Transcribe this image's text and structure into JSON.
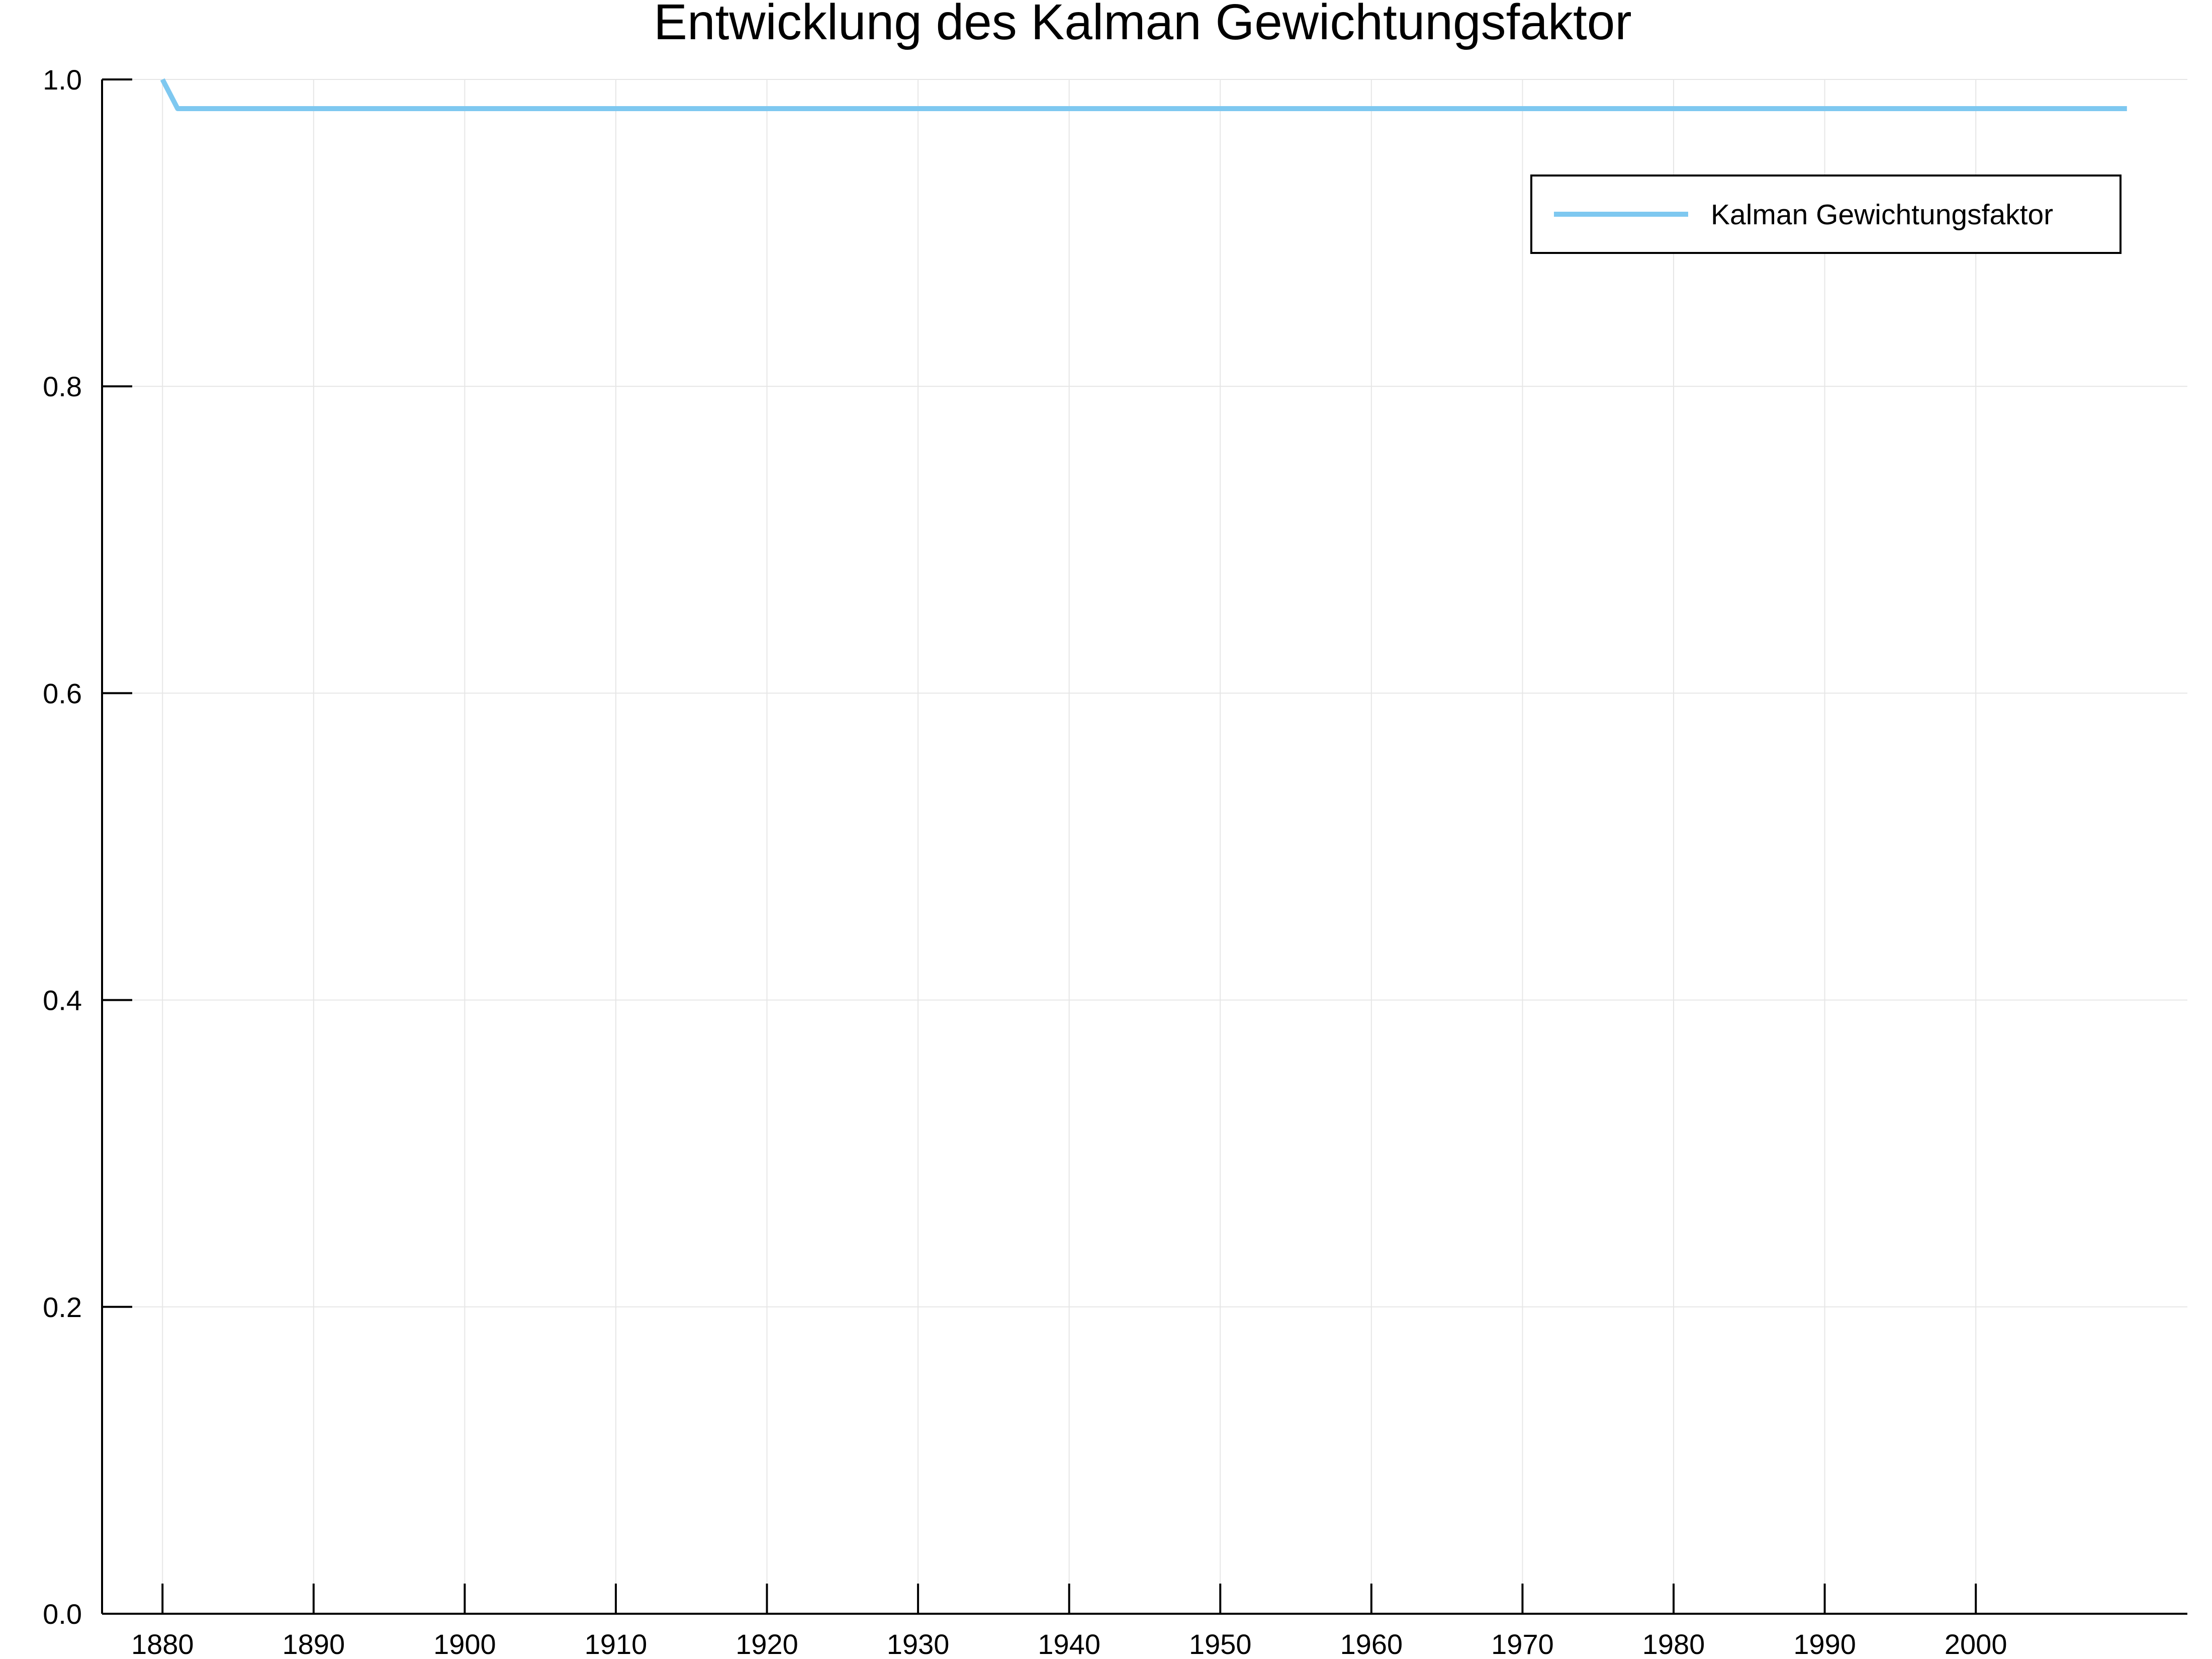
{
  "chart_data": {
    "type": "line",
    "title": "Entwicklung des Kalman Gewichtungsfaktor",
    "xlabel": "",
    "ylabel": "",
    "xlim": [
      1876,
      2014
    ],
    "ylim": [
      0.0,
      1.0
    ],
    "xticks": [
      "1880",
      "1890",
      "1900",
      "1910",
      "1920",
      "1930",
      "1940",
      "1950",
      "1960",
      "1970",
      "1980",
      "1990",
      "2000"
    ],
    "yticks": [
      "0.0",
      "0.2",
      "0.4",
      "0.6",
      "0.8",
      "1.0"
    ],
    "grid": true,
    "legend_position": "top-right",
    "series": [
      {
        "name": "Kalman Gewichtungsfaktor",
        "color": "#7EC8F0",
        "x": [
          1880,
          1881,
          1890,
          1900,
          1910,
          1920,
          1930,
          1940,
          1950,
          1960,
          1970,
          1980,
          1990,
          2000,
          2010
        ],
        "y": [
          1.0,
          0.981,
          0.981,
          0.981,
          0.981,
          0.981,
          0.981,
          0.981,
          0.981,
          0.981,
          0.981,
          0.981,
          0.981,
          0.981,
          0.981
        ]
      }
    ]
  }
}
